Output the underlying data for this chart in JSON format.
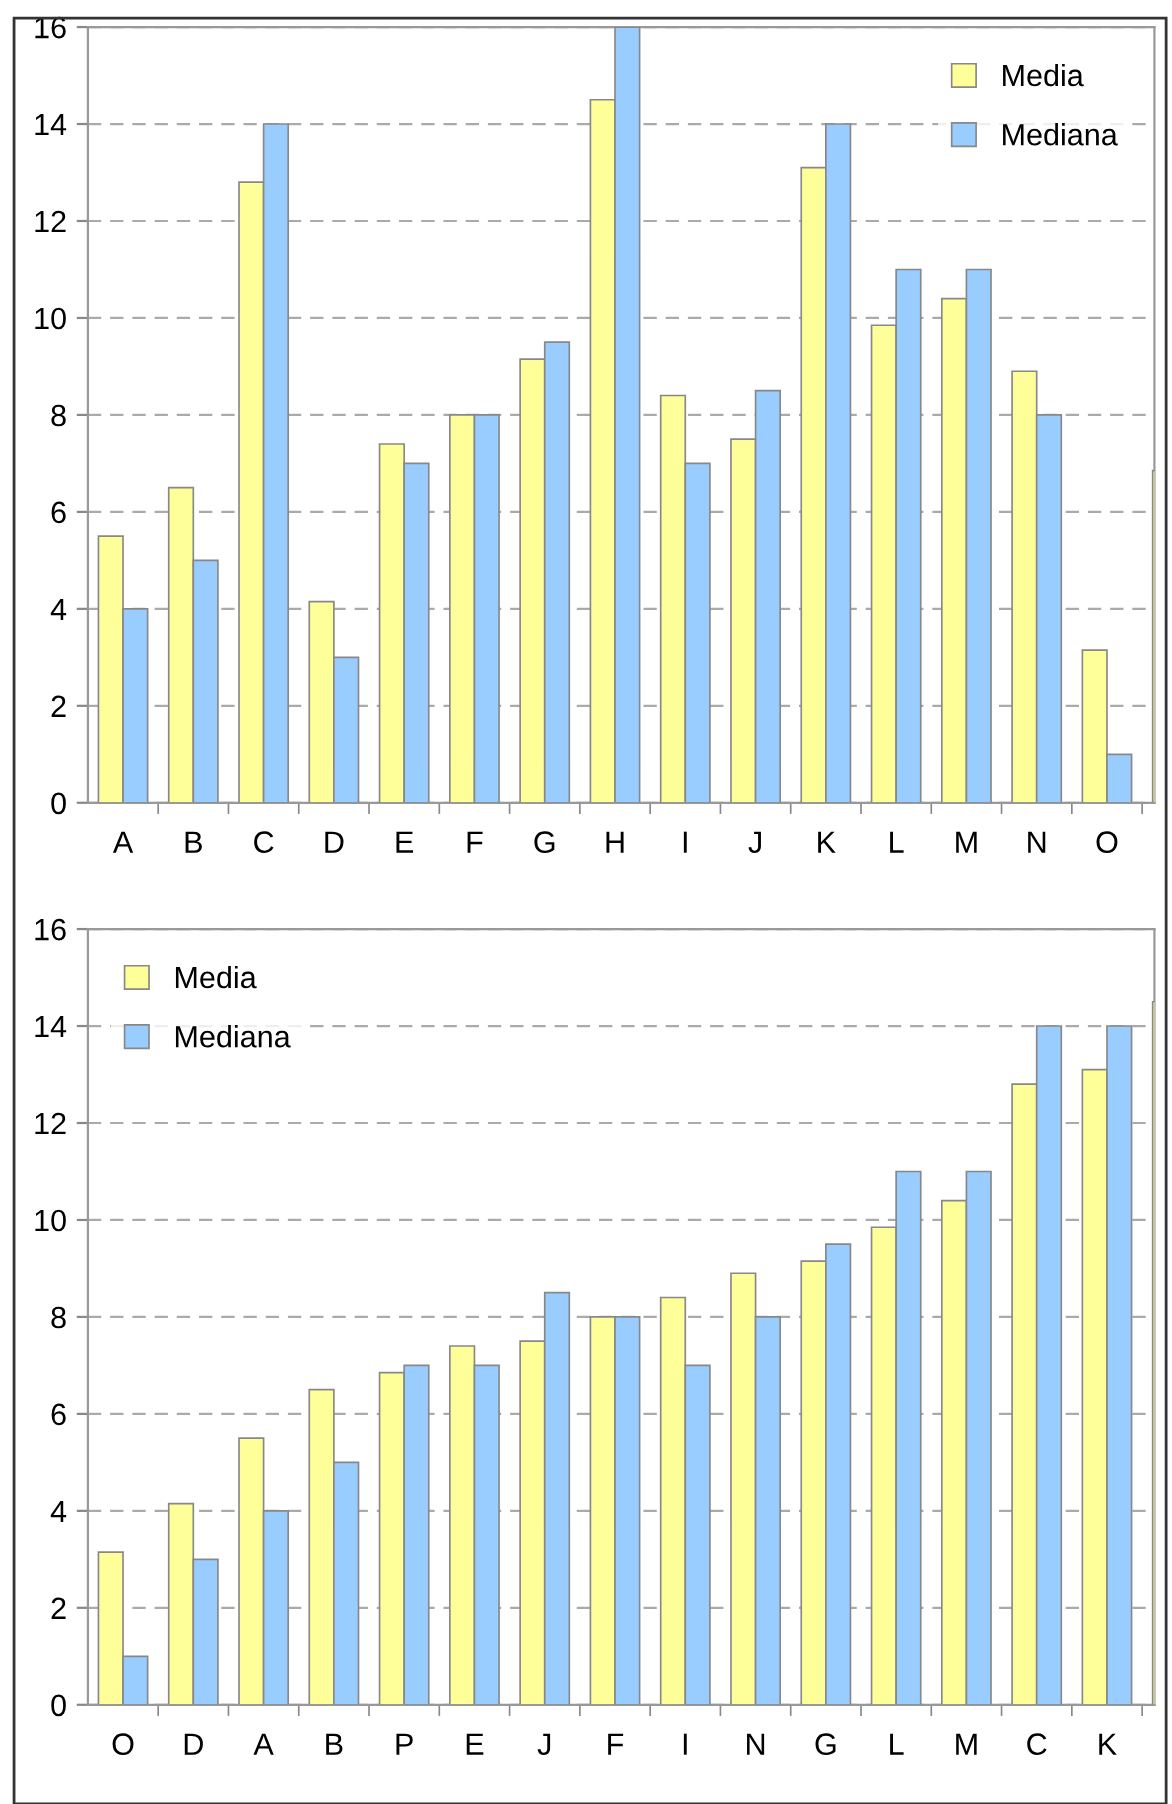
{
  "chart_data": [
    {
      "type": "bar",
      "categories": [
        "A",
        "B",
        "C",
        "D",
        "E",
        "F",
        "G",
        "H",
        "I",
        "J",
        "K",
        "L",
        "M",
        "N",
        "O",
        null
      ],
      "series": [
        {
          "name": "Media",
          "color": "#ffff99",
          "values": [
            5.5,
            6.5,
            12.8,
            4.15,
            7.4,
            8,
            9.15,
            14.5,
            8.4,
            7.5,
            13.1,
            9.85,
            10.4,
            8.9,
            3.15,
            6.85
          ]
        },
        {
          "name": "Mediana",
          "color": "#99ccff",
          "values": [
            4,
            5,
            14,
            3,
            7,
            8,
            9.5,
            16,
            7,
            8.5,
            14,
            11,
            11,
            8,
            1,
            null
          ]
        }
      ],
      "ylim": [
        0,
        16
      ],
      "yticks": [
        0,
        2,
        4,
        6,
        8,
        10,
        12,
        14,
        16
      ],
      "grid": "y",
      "legend": "top right"
    },
    {
      "type": "bar",
      "categories": [
        "O",
        "D",
        "A",
        "B",
        "P",
        "E",
        "J",
        "F",
        "I",
        "N",
        "G",
        "L",
        "M",
        "C",
        "K",
        null
      ],
      "series": [
        {
          "name": "Media",
          "color": "#ffff99",
          "values": [
            3.15,
            4.15,
            5.5,
            6.5,
            6.85,
            7.4,
            7.5,
            8,
            8.4,
            8.9,
            9.15,
            9.85,
            10.4,
            12.8,
            13.1,
            14.5
          ]
        },
        {
          "name": "Mediana",
          "color": "#99ccff",
          "values": [
            1,
            3,
            4,
            5,
            7,
            7,
            8.5,
            8,
            7,
            8,
            9.5,
            11,
            11,
            14,
            14,
            null
          ]
        }
      ],
      "ylim": [
        0,
        16
      ],
      "yticks": [
        0,
        2,
        4,
        6,
        8,
        10,
        12,
        14,
        16
      ],
      "grid": "y",
      "legend": "top left"
    }
  ]
}
